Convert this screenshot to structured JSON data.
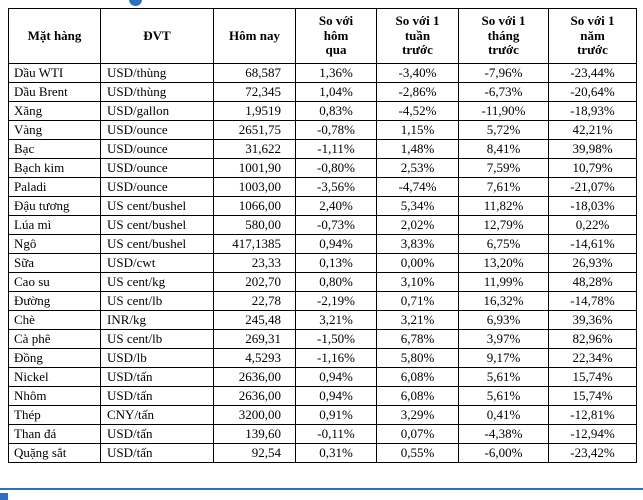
{
  "decor": {
    "accent_blue": "#2f6fc1"
  },
  "table": {
    "columns": [
      "Mặt hàng",
      "ĐVT",
      "Hôm nay",
      "So với\nhôm\nqua",
      "So với 1\ntuần\ntrước",
      "So với 1\ntháng\ntrước",
      "So với 1\nnăm\ntrước"
    ],
    "rows": [
      [
        "Dầu WTI",
        "USD/thùng",
        "68,587",
        "1,36%",
        "-3,40%",
        "-7,96%",
        "-23,44%"
      ],
      [
        "Dầu Brent",
        "USD/thùng",
        "72,345",
        "1,04%",
        "-2,86%",
        "-6,73%",
        "-20,64%"
      ],
      [
        "Xăng",
        "USD/gallon",
        "1,9519",
        "0,83%",
        "-4,52%",
        "-11,90%",
        "-18,93%"
      ],
      [
        "Vàng",
        "USD/ounce",
        "2651,75",
        "-0,78%",
        "1,15%",
        "5,72%",
        "42,21%"
      ],
      [
        "Bạc",
        "USD/ounce",
        "31,622",
        "-1,11%",
        "1,48%",
        "8,41%",
        "39,98%"
      ],
      [
        "Bạch kim",
        "USD/ounce",
        "1001,90",
        "-0,80%",
        "2,53%",
        "7,59%",
        "10,79%"
      ],
      [
        "Paladi",
        "USD/ounce",
        "1003,00",
        "-3,56%",
        "-4,74%",
        "7,61%",
        "-21,07%"
      ],
      [
        "Đậu tương",
        "US cent/bushel",
        "1066,00",
        "2,40%",
        "5,34%",
        "11,82%",
        "-18,03%"
      ],
      [
        "Lúa mì",
        "US cent/bushel",
        "580,00",
        "-0,73%",
        "2,02%",
        "12,79%",
        "0,22%"
      ],
      [
        "Ngô",
        "US cent/bushel",
        "417,1385",
        "0,94%",
        "3,83%",
        "6,75%",
        "-14,61%"
      ],
      [
        "Sữa",
        "USD/cwt",
        "23,33",
        "0,13%",
        "0,00%",
        "13,20%",
        "26,93%"
      ],
      [
        "Cao su",
        "US cent/kg",
        "202,70",
        "0,80%",
        "3,10%",
        "11,99%",
        "48,28%"
      ],
      [
        "Đường",
        "US cent/lb",
        "22,78",
        "-2,19%",
        "0,71%",
        "16,32%",
        "-14,78%"
      ],
      [
        "Chè",
        "INR/kg",
        "245,48",
        "3,21%",
        "3,21%",
        "6,93%",
        "39,36%"
      ],
      [
        "Cà phê",
        "US cent/lb",
        "269,31",
        "-1,50%",
        "6,78%",
        "3,97%",
        "82,96%"
      ],
      [
        "Đồng",
        "USD/lb",
        "4,5293",
        "-1,16%",
        "5,80%",
        "9,17%",
        "22,34%"
      ],
      [
        "Nickel",
        "USD/tấn",
        "2636,00",
        "0,94%",
        "6,08%",
        "5,61%",
        "15,74%"
      ],
      [
        "Nhôm",
        "USD/tấn",
        "2636,00",
        "0,94%",
        "6,08%",
        "5,61%",
        "15,74%"
      ],
      [
        "Thép",
        "CNY/tấn",
        "3200,00",
        "0,91%",
        "3,29%",
        "0,41%",
        "-12,81%"
      ],
      [
        "Than đá",
        "USD/tấn",
        "139,60",
        "-0,11%",
        "0,07%",
        "-4,38%",
        "-12,94%"
      ],
      [
        "Quặng sắt",
        "USD/tấn",
        "92,54",
        "0,31%",
        "0,55%",
        "-6,00%",
        "-23,42%"
      ]
    ]
  }
}
